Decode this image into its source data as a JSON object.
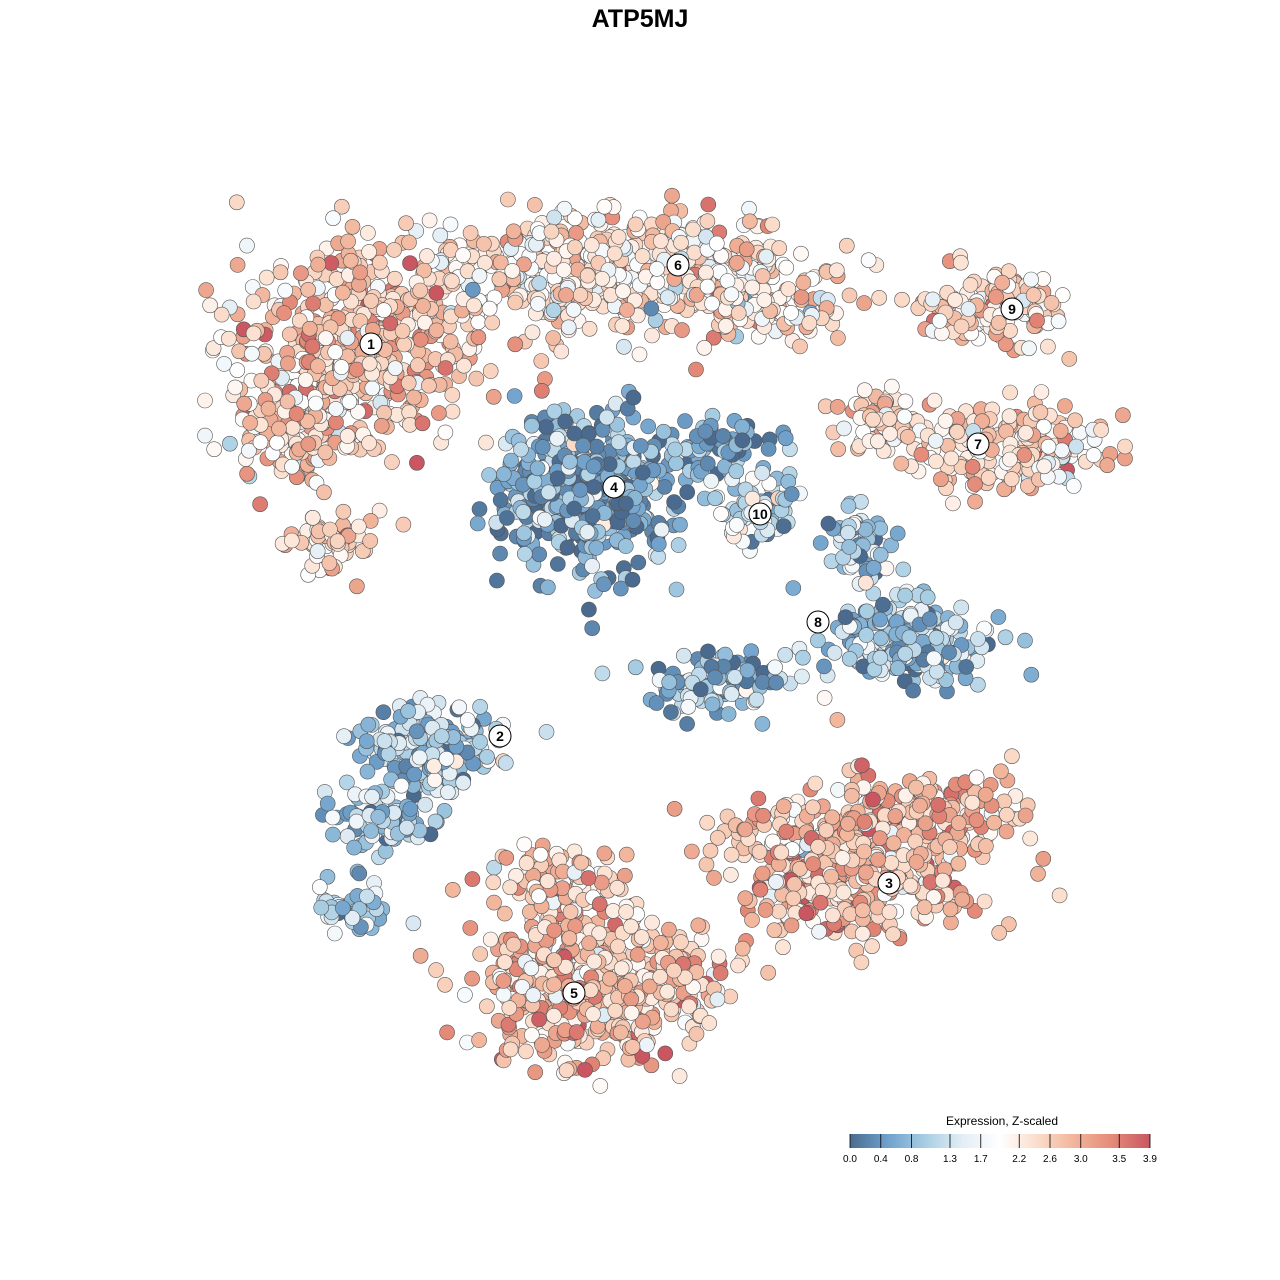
{
  "chart_data": {
    "type": "scatter",
    "title": "ATP5MJ",
    "colorbar": {
      "title": "Expression, Z-scaled",
      "min": 0.0,
      "max": 3.9,
      "ticks": [
        0.0,
        0.4,
        0.8,
        1.3,
        1.7,
        2.2,
        2.6,
        3.0,
        3.5,
        3.9
      ],
      "tick_labels": [
        "0.0",
        "0.4",
        "0.8",
        "1.3",
        "1.7",
        "2.2",
        "2.6",
        "3.0",
        "3.5",
        "3.9"
      ],
      "palette": [
        "#4a6b8f",
        "#6fa1cc",
        "#a7cde3",
        "#e3eef5",
        "#ffffff",
        "#fbdcca",
        "#f1b49a",
        "#e48a78",
        "#c95660"
      ],
      "placement": "bottom-right"
    },
    "clusters": [
      {
        "label": "1",
        "mean_expression": 2.6
      },
      {
        "label": "2",
        "mean_expression": 0.9
      },
      {
        "label": "3",
        "mean_expression": 2.8
      },
      {
        "label": "4",
        "mean_expression": 0.6
      },
      {
        "label": "5",
        "mean_expression": 2.7
      },
      {
        "label": "6",
        "mean_expression": 2.3
      },
      {
        "label": "7",
        "mean_expression": 2.4
      },
      {
        "label": "8",
        "mean_expression": 0.9
      },
      {
        "label": "9",
        "mean_expression": 2.4
      },
      {
        "label": "10",
        "mean_expression": 1.3
      }
    ],
    "axes_visible": false,
    "grid": false
  }
}
